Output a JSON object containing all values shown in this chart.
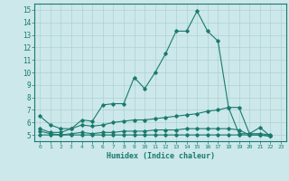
{
  "line1_x": [
    0,
    1,
    2,
    3,
    4,
    5,
    6,
    7,
    8,
    9,
    10,
    11,
    12,
    13,
    14,
    15,
    16,
    17,
    18,
    19,
    20,
    21,
    22,
    23
  ],
  "line1_y": [
    6.5,
    5.8,
    5.5,
    5.5,
    6.2,
    6.1,
    7.4,
    7.5,
    7.5,
    9.6,
    8.7,
    10.0,
    11.5,
    13.3,
    13.3,
    14.9,
    13.3,
    12.5,
    7.2,
    5.1,
    5.1,
    5.6,
    4.9,
    null
  ],
  "line2_x": [
    0,
    1,
    2,
    3,
    4,
    5,
    6,
    7,
    8,
    9,
    10,
    11,
    12,
    13,
    14,
    15,
    16,
    17,
    18,
    19,
    20,
    21,
    22,
    23
  ],
  "line2_y": [
    5.5,
    5.2,
    5.2,
    5.5,
    5.8,
    5.7,
    5.8,
    6.0,
    6.1,
    6.2,
    6.2,
    6.3,
    6.4,
    6.5,
    6.6,
    6.7,
    6.9,
    7.0,
    7.2,
    7.2,
    5.1,
    5.1,
    5.0,
    null
  ],
  "line3_x": [
    0,
    1,
    2,
    3,
    4,
    5,
    6,
    7,
    8,
    9,
    10,
    11,
    12,
    13,
    14,
    15,
    16,
    17,
    18,
    19,
    20,
    21,
    22,
    23
  ],
  "line3_y": [
    5.3,
    5.1,
    5.0,
    5.1,
    5.2,
    5.1,
    5.2,
    5.2,
    5.3,
    5.3,
    5.3,
    5.4,
    5.4,
    5.4,
    5.5,
    5.5,
    5.5,
    5.5,
    5.5,
    5.4,
    5.0,
    5.0,
    4.9,
    null
  ],
  "line4_x": [
    0,
    1,
    2,
    3,
    4,
    5,
    6,
    7,
    8,
    9,
    10,
    11,
    12,
    13,
    14,
    15,
    16,
    17,
    18,
    19,
    20,
    21,
    22,
    23
  ],
  "line4_y": [
    5.0,
    5.0,
    5.0,
    5.0,
    5.0,
    5.0,
    5.0,
    5.0,
    5.0,
    5.0,
    5.0,
    5.0,
    5.0,
    5.0,
    5.0,
    5.0,
    5.0,
    5.0,
    5.0,
    5.0,
    5.0,
    5.0,
    4.9,
    null
  ],
  "line_color": "#1a7a6e",
  "bg_color": "#cce8ea",
  "grid_color": "#afd0d2",
  "xlabel": "Humidex (Indice chaleur)",
  "xticks": [
    0,
    1,
    2,
    3,
    4,
    5,
    6,
    7,
    8,
    9,
    10,
    11,
    12,
    13,
    14,
    15,
    16,
    17,
    18,
    19,
    20,
    21,
    22,
    23
  ],
  "yticks": [
    5,
    6,
    7,
    8,
    9,
    10,
    11,
    12,
    13,
    14,
    15
  ],
  "ylim": [
    4.5,
    15.5
  ],
  "xlim": [
    -0.5,
    23.5
  ]
}
